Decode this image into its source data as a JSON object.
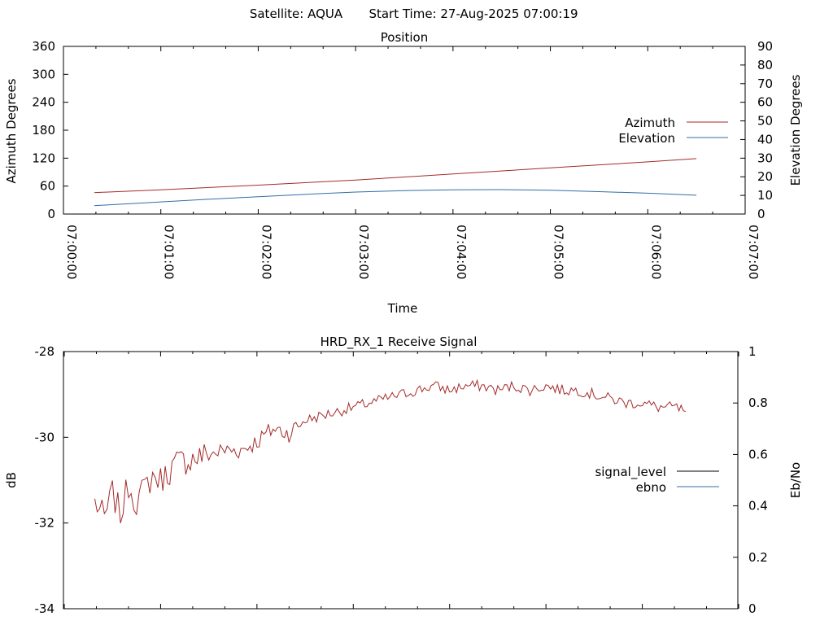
{
  "header": {
    "satellite": "Satellite: AQUA",
    "start_time": "Start Time: 27-Aug-2025 07:00:19"
  },
  "chart_data": [
    {
      "type": "line",
      "title": "Position",
      "xlabel": "Time",
      "ylabel": "Azimuth Degrees",
      "y2label": "Elevation Degrees",
      "xlim": [
        "07:00:00",
        "07:07:00"
      ],
      "ylim": [
        0,
        360
      ],
      "y2lim": [
        0,
        90
      ],
      "x_ticks": [
        "07:00:00",
        "07:01:00",
        "07:02:00",
        "07:03:00",
        "07:04:00",
        "07:05:00",
        "07:06:00",
        "07:07:00"
      ],
      "y_ticks": [
        "0",
        "60",
        "120",
        "180",
        "240",
        "300",
        "360"
      ],
      "y2_ticks": [
        "0",
        "10",
        "20",
        "30",
        "40",
        "50",
        "60",
        "70",
        "80",
        "90"
      ],
      "legend_position": "right",
      "series": [
        {
          "name": "Azimuth",
          "axis": "y",
          "color": "#a52a2a",
          "x": [
            "07:00:19",
            "07:01:00",
            "07:02:00",
            "07:03:00",
            "07:04:00",
            "07:05:00",
            "07:06:00",
            "07:06:30"
          ],
          "values": [
            46,
            52,
            62,
            73,
            86,
            99,
            112,
            119
          ]
        },
        {
          "name": "Elevation",
          "axis": "y2",
          "color": "#2f6fa8",
          "x": [
            "07:00:19",
            "07:01:00",
            "07:01:30",
            "07:02:00",
            "07:02:30",
            "07:03:00",
            "07:03:30",
            "07:04:00",
            "07:04:30",
            "07:05:00",
            "07:05:30",
            "07:06:00",
            "07:06:30"
          ],
          "values": [
            4.5,
            6.5,
            8,
            9.3,
            10.6,
            11.8,
            12.6,
            13.0,
            13.1,
            12.8,
            12.0,
            11.2,
            10.1
          ]
        }
      ]
    },
    {
      "type": "line",
      "title": "HRD_RX_1 Receive Signal",
      "xlabel": "",
      "ylabel": "dB",
      "y2label": "Eb/No",
      "xlim": [
        "07:00:00",
        "07:07:00"
      ],
      "ylim": [
        -34,
        -28
      ],
      "y2lim": [
        0,
        1
      ],
      "y_ticks": [
        "-28",
        "-30",
        "-32",
        "-34"
      ],
      "y2_ticks": [
        "0",
        "0.2",
        "0.4",
        "0.6",
        "0.8",
        "1"
      ],
      "legend_position": "right",
      "series": [
        {
          "name": "signal_level",
          "axis": "y",
          "color": "#000000",
          "x": [],
          "values": []
        },
        {
          "name": "ebno",
          "axis": "y2",
          "color": "#2f6fa8",
          "x": [],
          "values": []
        },
        {
          "axis": "y",
          "color": "#a52a2a",
          "x": [
            "07:00:19",
            "07:00:25",
            "07:00:30",
            "07:00:35",
            "07:00:40",
            "07:00:45",
            "07:00:50",
            "07:00:55",
            "07:01:00",
            "07:01:10",
            "07:01:20",
            "07:01:30",
            "07:01:40",
            "07:01:50",
            "07:02:00",
            "07:02:10",
            "07:02:20",
            "07:02:30",
            "07:02:40",
            "07:02:50",
            "07:03:00",
            "07:03:10",
            "07:03:20",
            "07:03:30",
            "07:03:40",
            "07:03:50",
            "07:04:00",
            "07:04:10",
            "07:04:20",
            "07:04:30",
            "07:04:40",
            "07:04:50",
            "07:05:00",
            "07:05:10",
            "07:05:20",
            "07:05:30",
            "07:05:40",
            "07:05:50",
            "07:06:00",
            "07:06:10",
            "07:06:20",
            "07:06:27"
          ],
          "values": [
            -31.5,
            -31.9,
            -31.3,
            -31.8,
            -31.1,
            -31.5,
            -31.2,
            -30.9,
            -31.0,
            -30.6,
            -30.5,
            -30.4,
            -30.3,
            -30.3,
            -30.1,
            -29.8,
            -29.9,
            -29.6,
            -29.5,
            -29.4,
            -29.3,
            -29.2,
            -29.1,
            -29.0,
            -28.9,
            -28.8,
            -28.9,
            -28.8,
            -28.8,
            -28.9,
            -28.8,
            -28.9,
            -28.8,
            -28.9,
            -28.9,
            -29.0,
            -29.1,
            -29.2,
            -29.2,
            -29.3,
            -29.3,
            -29.4
          ]
        }
      ]
    }
  ]
}
